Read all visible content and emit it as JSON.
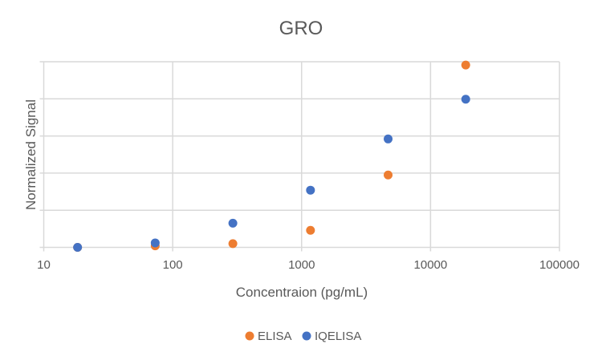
{
  "chart_data": {
    "type": "scatter",
    "title": "GRO",
    "xlabel": "Concentraion (pg/mL)",
    "ylabel": "Normalized Signal",
    "x_scale": "log",
    "xlim": [
      10,
      100000
    ],
    "x_ticks": [
      "10",
      "100",
      "1000",
      "10000",
      "100000"
    ],
    "ylim": [
      0,
      5
    ],
    "y_tick_labels_shown": false,
    "grid": true,
    "legend": "bottom",
    "series": [
      {
        "name": "ELISA",
        "color": "#ED7D31",
        "x": [
          18.3,
          73.2,
          293,
          1172,
          4688,
          18750
        ],
        "y": [
          0,
          0.04,
          0.1,
          0.46,
          1.95,
          4.91
        ]
      },
      {
        "name": "IQELISA",
        "color": "#4472C4",
        "x": [
          18.3,
          73.2,
          293,
          1172,
          4688,
          18750
        ],
        "y": [
          0,
          0.12,
          0.65,
          1.54,
          2.92,
          3.99
        ]
      }
    ]
  }
}
